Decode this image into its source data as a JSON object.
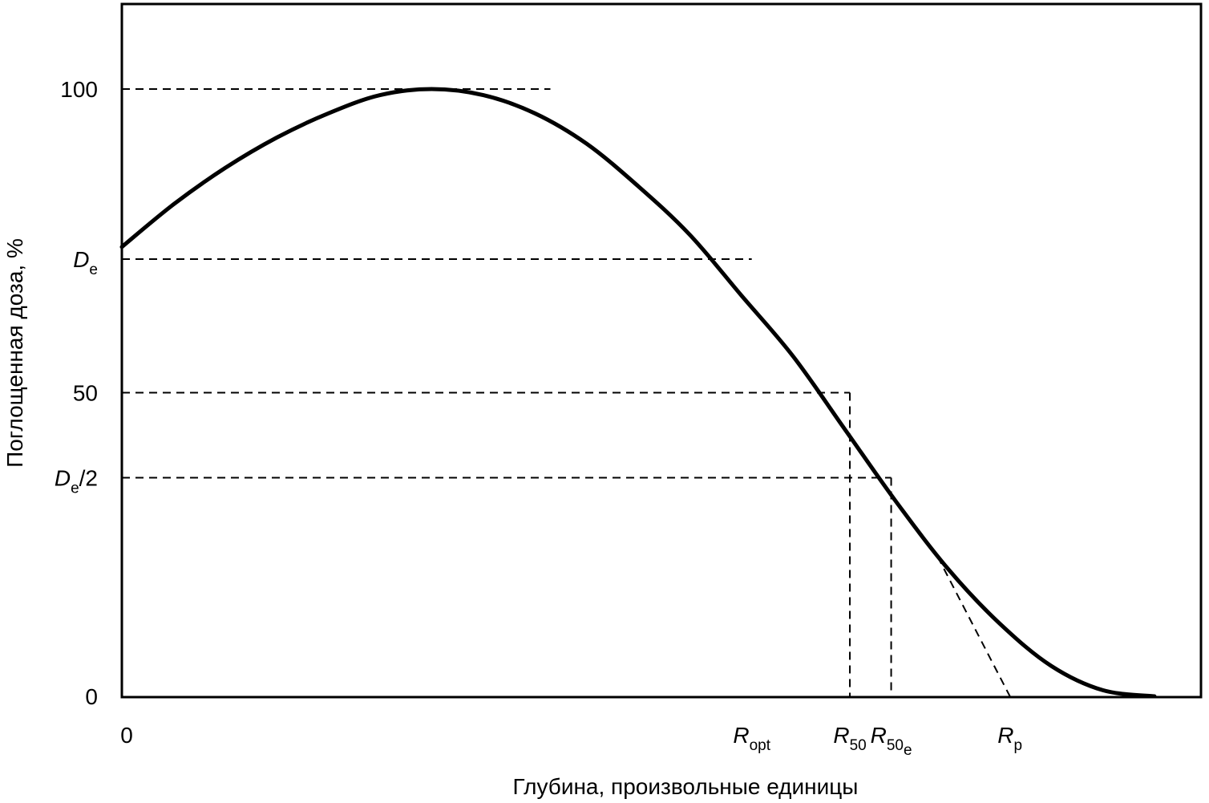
{
  "chart_data": {
    "type": "line",
    "title": "",
    "xlabel": "Глубина, произвольные единицы",
    "ylabel": "Поглощенная доза, %",
    "xlim": [
      0,
      10
    ],
    "ylim": [
      0,
      114
    ],
    "grid": false,
    "y_ticks": [
      {
        "value": 100,
        "label": "100"
      },
      {
        "value": 72,
        "main": "D",
        "sub": "e",
        "after": ""
      },
      {
        "value": 50,
        "label": "50"
      },
      {
        "value": 36,
        "main": "D",
        "sub": "e",
        "after": "/2"
      },
      {
        "value": 0,
        "label": "0"
      }
    ],
    "x_ticks": [
      {
        "value": 0,
        "label": "0"
      },
      {
        "value": 6.1,
        "main": "R",
        "sub": "opt",
        "subsub": ""
      },
      {
        "value": 7.05,
        "main": "R",
        "sub": "50",
        "subsub": ""
      },
      {
        "value": 7.45,
        "main": "R",
        "sub": "50",
        "subsub": "e"
      },
      {
        "value": 8.6,
        "main": "R",
        "sub": "p",
        "subsub": ""
      }
    ],
    "series": [
      {
        "x": [
          0,
          0.5,
          1,
          1.5,
          2,
          2.5,
          3,
          3.5,
          4,
          4.5,
          5,
          5.5,
          6,
          6.5,
          7,
          7.5,
          8,
          8.5,
          9,
          9.5,
          10
        ],
        "y": [
          74,
          81,
          87,
          92,
          96,
          99,
          100,
          99,
          96,
          91,
          84,
          76,
          66,
          56,
          44,
          32,
          21,
          12,
          5,
          1,
          0
        ]
      }
    ],
    "reference_lines": [
      {
        "kind": "horizontal",
        "y": 100,
        "x_end": 4.15
      },
      {
        "kind": "horizontal",
        "y": 72,
        "x_end": 6.1
      },
      {
        "kind": "horizontal",
        "y": 50,
        "x_end": 7.05
      },
      {
        "kind": "horizontal",
        "y": 36,
        "x_end": 7.45
      },
      {
        "kind": "vertical",
        "x": 7.05,
        "y_top": 50
      },
      {
        "kind": "vertical",
        "x": 7.45,
        "y_top": 36
      },
      {
        "kind": "tangent",
        "from": [
          7.9,
          23
        ],
        "to": [
          8.6,
          0
        ]
      }
    ]
  }
}
